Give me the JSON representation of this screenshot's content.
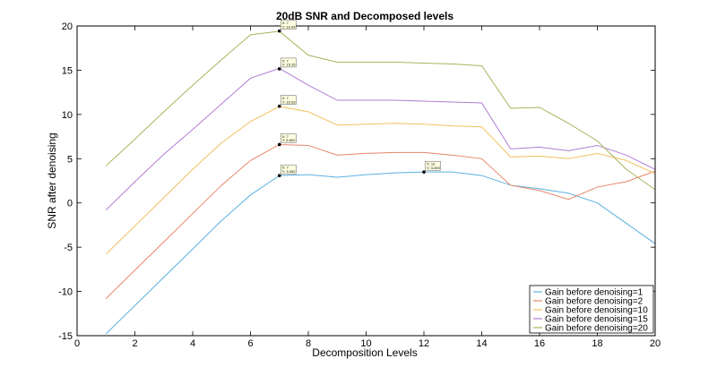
{
  "chart_data": {
    "type": "line",
    "title": "20dB SNR and Decomposed levels",
    "xlabel": "Decomposition Levels",
    "ylabel": "SNR after denoising",
    "xlim": [
      0,
      20
    ],
    "ylim": [
      -15,
      20
    ],
    "xticks": [
      0,
      2,
      4,
      6,
      8,
      10,
      12,
      14,
      16,
      18,
      20
    ],
    "yticks": [
      -15,
      -10,
      -5,
      0,
      5,
      10,
      15,
      20
    ],
    "grid": false,
    "legend_position": "bottom-right",
    "x": [
      1,
      2,
      3,
      4,
      5,
      6,
      7,
      8,
      9,
      10,
      11,
      12,
      13,
      14,
      15,
      16,
      17,
      18,
      19,
      20
    ],
    "series": [
      {
        "name": "Gain before denoising=1",
        "color": "#5ab0e0",
        "values": [
          -14.8,
          -11.6,
          -8.4,
          -5.2,
          -2.0,
          0.9,
          3.1,
          3.2,
          2.9,
          3.2,
          3.4,
          3.5,
          3.5,
          3.1,
          2.0,
          1.6,
          1.1,
          0.0,
          -2.3,
          -4.6
        ]
      },
      {
        "name": "Gain before denoising=2",
        "color": "#e8866a",
        "values": [
          -10.8,
          -7.6,
          -4.4,
          -1.2,
          2.0,
          4.8,
          6.6,
          6.5,
          5.4,
          5.6,
          5.7,
          5.7,
          5.4,
          5.0,
          2.0,
          1.4,
          0.4,
          1.8,
          2.4,
          3.6
        ]
      },
      {
        "name": "Gain before denoising=10",
        "color": "#f0c060",
        "values": [
          -5.8,
          -2.6,
          0.6,
          3.8,
          6.8,
          9.2,
          10.9,
          10.3,
          8.8,
          8.9,
          9.0,
          8.9,
          8.7,
          8.6,
          5.2,
          5.3,
          5.0,
          5.6,
          4.8,
          3.3
        ]
      },
      {
        "name": "Gain before denoising=15",
        "color": "#b07cd6",
        "values": [
          -0.8,
          2.4,
          5.5,
          8.3,
          11.2,
          14.1,
          15.2,
          13.3,
          11.6,
          11.6,
          11.6,
          11.5,
          11.4,
          11.3,
          6.1,
          6.3,
          5.9,
          6.5,
          5.4,
          3.8
        ]
      },
      {
        "name": "Gain before denoising=20",
        "color": "#a8b45c",
        "values": [
          4.2,
          7.2,
          10.3,
          13.3,
          16.2,
          19.0,
          19.4,
          16.7,
          15.9,
          15.9,
          15.9,
          15.8,
          15.7,
          15.5,
          10.7,
          10.8,
          9.0,
          7.0,
          3.8,
          1.5
        ]
      }
    ],
    "annotations": [
      {
        "x_text": "X: 7",
        "y_text": "Y: 3.092",
        "x": 7,
        "y": 3.092
      },
      {
        "x_text": "X: 7",
        "y_text": "Y: 6.602",
        "x": 7,
        "y": 6.602
      },
      {
        "x_text": "X: 7",
        "y_text": "Y: 10.93",
        "x": 7,
        "y": 10.93
      },
      {
        "x_text": "X: 7",
        "y_text": "Y: 15.15",
        "x": 7,
        "y": 15.15
      },
      {
        "x_text": "X: 7",
        "y_text": "Y: 19.43",
        "x": 7,
        "y": 19.43
      },
      {
        "x_text": "X: 12",
        "y_text": "Y: 3.493",
        "x": 12,
        "y": 3.493
      }
    ]
  }
}
